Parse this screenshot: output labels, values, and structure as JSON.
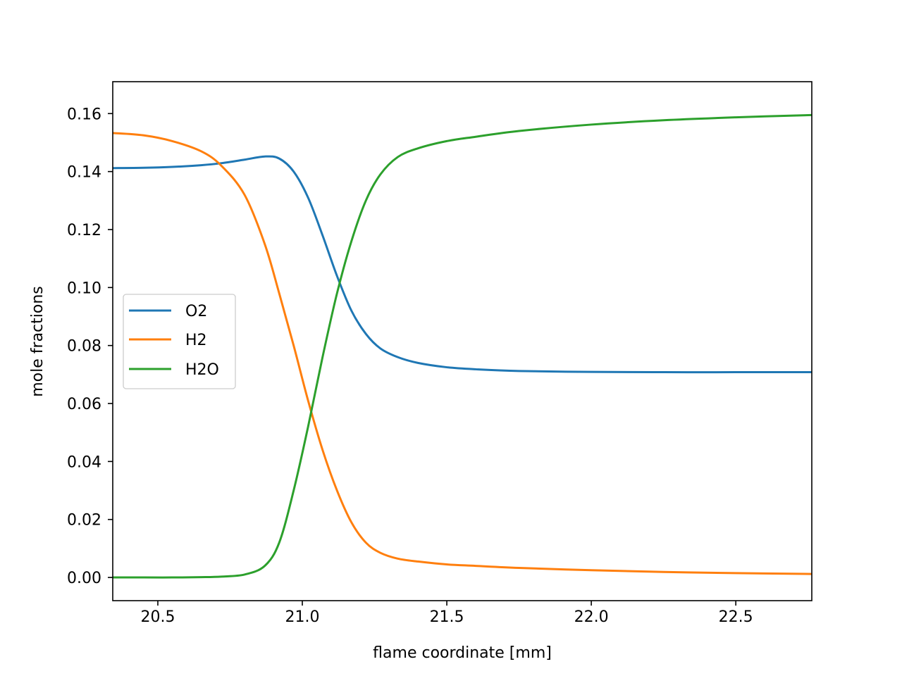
{
  "chart_data": {
    "type": "line",
    "title": "",
    "xlabel": "flame coordinate [mm]",
    "ylabel": "mole fractions",
    "xlim": [
      20.344,
      22.763
    ],
    "ylim": [
      -0.008,
      0.171
    ],
    "xticks": [
      20.5,
      21.0,
      21.5,
      22.0,
      22.5
    ],
    "xtick_labels": [
      "20.5",
      "21.0",
      "21.5",
      "22.0",
      "22.5"
    ],
    "yticks": [
      0.0,
      0.02,
      0.04,
      0.06,
      0.08,
      0.1,
      0.12,
      0.14,
      0.16
    ],
    "ytick_labels": [
      "0.00",
      "0.02",
      "0.04",
      "0.06",
      "0.08",
      "0.10",
      "0.12",
      "0.14",
      "0.16"
    ],
    "grid": false,
    "legend_position": "center left",
    "x": [
      20.344,
      20.45,
      20.55,
      20.65,
      20.72,
      20.8,
      20.87,
      20.92,
      20.97,
      21.02,
      21.07,
      21.12,
      21.17,
      21.22,
      21.27,
      21.33,
      21.4,
      21.5,
      21.6,
      21.75,
      22.0,
      22.25,
      22.5,
      22.763
    ],
    "series": [
      {
        "name": "O2",
        "color": "#1f77b4",
        "values": [
          0.1412,
          0.1413,
          0.1416,
          0.1422,
          0.1429,
          0.1441,
          0.1452,
          0.1445,
          0.14,
          0.131,
          0.118,
          0.104,
          0.092,
          0.084,
          0.079,
          0.076,
          0.074,
          0.0725,
          0.0718,
          0.0712,
          0.0709,
          0.0708,
          0.0708,
          0.0708
        ]
      },
      {
        "name": "H2",
        "color": "#ff7f0e",
        "values": [
          0.1533,
          0.1525,
          0.1505,
          0.147,
          0.142,
          0.132,
          0.115,
          0.098,
          0.08,
          0.061,
          0.044,
          0.03,
          0.019,
          0.012,
          0.0085,
          0.0065,
          0.0055,
          0.0045,
          0.004,
          0.0033,
          0.0025,
          0.0019,
          0.0015,
          0.0012
        ]
      },
      {
        "name": "H2O",
        "color": "#2ca02c",
        "values": [
          0.0,
          0.0,
          0.0,
          0.0001,
          0.0003,
          0.001,
          0.004,
          0.012,
          0.03,
          0.052,
          0.076,
          0.098,
          0.116,
          0.13,
          0.139,
          0.145,
          0.148,
          0.1505,
          0.152,
          0.154,
          0.1562,
          0.1577,
          0.1587,
          0.1595
        ]
      }
    ]
  },
  "legend": {
    "items": [
      {
        "label": "O2",
        "color": "#1f77b4"
      },
      {
        "label": "H2",
        "color": "#ff7f0e"
      },
      {
        "label": "H2O",
        "color": "#2ca02c"
      }
    ]
  }
}
